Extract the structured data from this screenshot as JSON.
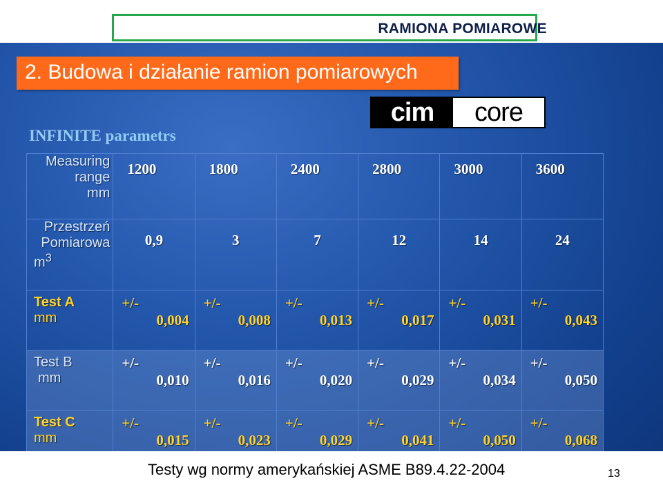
{
  "header": {
    "title": "RAMIONA POMIAROWE",
    "subtitle": "2. Budowa i działanie ramion pomiarowych"
  },
  "logo": {
    "left": "cim",
    "right": "core"
  },
  "section_title": "INFINITE parametrs",
  "table": {
    "range_label": [
      "Measuring",
      "range",
      "mm"
    ],
    "range_values": [
      "1200",
      "1800",
      "2400",
      "2800",
      "3000",
      "3600"
    ],
    "volume_label_1": "Przestrzeń",
    "volume_label_2": "Pomiarowa",
    "volume_label_3": "m",
    "volume_label_sup": "3",
    "volume_values": [
      "0,9",
      "3",
      "7",
      "12",
      "14",
      "24"
    ],
    "tests": [
      {
        "name": "Test A",
        "unit": "mm",
        "pm": "+/-",
        "values": [
          "0,004",
          "0,008",
          "0,013",
          "0,017",
          "0,031",
          "0,043"
        ]
      },
      {
        "name": "Test B",
        "unit": "mm",
        "pm": "+/-",
        "values": [
          "0,010",
          "0,016",
          "0,020",
          "0,029",
          "0,034",
          "0,050"
        ]
      },
      {
        "name": "Test C",
        "unit": "mm",
        "pm": "+/-",
        "values": [
          "0,015",
          "0,023",
          "0,029",
          "0,041",
          "0,050",
          "0,068"
        ]
      }
    ]
  },
  "footer": {
    "note": "Testy wg normy amerykańskiej ASME B89.4.22-2004",
    "page": "13"
  },
  "colors": {
    "accent": "#ff6a1a",
    "frame": "#27a84a",
    "highlight": "#ffd22a",
    "subtitle_blue": "#93cbf2"
  }
}
